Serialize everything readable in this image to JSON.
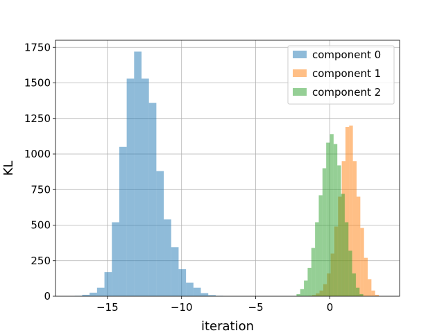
{
  "chart_data": {
    "type": "histogram",
    "xlabel": "iteration",
    "ylabel": "KL",
    "xlim": [
      -18.5,
      4.7
    ],
    "ylim": [
      0,
      1800
    ],
    "xticks": [
      -15,
      -10,
      -5,
      0
    ],
    "xtick_labels": [
      "−15",
      "−10",
      "−5",
      "0"
    ],
    "yticks": [
      0,
      250,
      500,
      750,
      1000,
      1250,
      1500,
      1750
    ],
    "ytick_labels": [
      "0",
      "250",
      "500",
      "750",
      "1000",
      "1250",
      "1500",
      "1750"
    ],
    "grid": true,
    "legend_position": "top-right",
    "alpha": 0.5,
    "series": [
      {
        "name": "component 0",
        "color": "#1f77b4",
        "bin_edges": [
          -17.2,
          -16.7,
          -16.2,
          -15.7,
          -15.2,
          -14.7,
          -14.2,
          -13.7,
          -13.2,
          -12.7,
          -12.2,
          -11.7,
          -11.2,
          -10.7,
          -10.2,
          -9.7,
          -9.2,
          -8.7,
          -8.2,
          -7.7,
          -7.2
        ],
        "counts": [
          3,
          10,
          25,
          60,
          170,
          520,
          1050,
          1530,
          1720,
          1530,
          1360,
          880,
          540,
          345,
          190,
          95,
          60,
          22,
          8,
          3
        ]
      },
      {
        "name": "component 1",
        "color": "#ff7f0e",
        "bin_edges": [
          -1.45,
          -1.2,
          -0.95,
          -0.7,
          -0.45,
          -0.2,
          0.05,
          0.3,
          0.55,
          0.8,
          1.05,
          1.3,
          1.55,
          1.8,
          2.05,
          2.3,
          2.55,
          2.8,
          3.05,
          3.3
        ],
        "counts": [
          3,
          8,
          20,
          40,
          85,
          160,
          300,
          490,
          700,
          950,
          1190,
          1200,
          950,
          700,
          480,
          270,
          120,
          40,
          10
        ]
      },
      {
        "name": "component 2",
        "color": "#2ca02c",
        "bin_edges": [
          -2.25,
          -2.0,
          -1.75,
          -1.5,
          -1.25,
          -1.0,
          -0.75,
          -0.5,
          -0.25,
          0.0,
          0.25,
          0.5,
          0.75,
          1.0,
          1.25,
          1.5,
          1.75,
          2.0,
          2.25
        ],
        "counts": [
          15,
          50,
          110,
          200,
          340,
          520,
          710,
          900,
          1080,
          1140,
          1070,
          920,
          720,
          520,
          320,
          160,
          60,
          15
        ]
      }
    ]
  }
}
